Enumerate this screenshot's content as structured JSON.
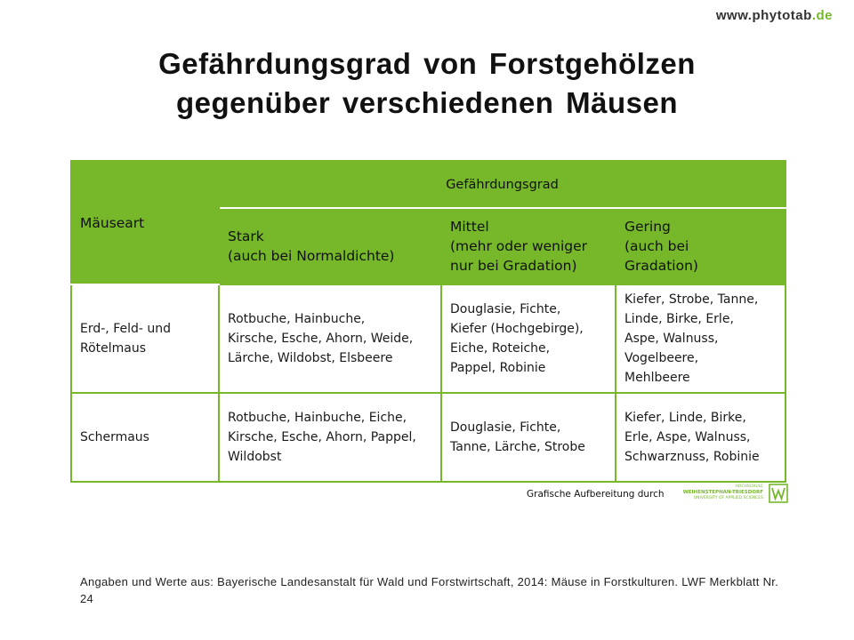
{
  "site": {
    "name": "www.phytotab",
    "tld": ".de"
  },
  "title": {
    "line1": "Gefährdungsgrad von Forstgehölzen",
    "line2": "gegenüber verschiedenen Mäusen"
  },
  "table": {
    "row_header": "Mäuseart",
    "group_header": "Gefährdungsgrad",
    "columns": [
      {
        "line1": "Stark",
        "line2": "(auch bei  Normaldichte)",
        "line3": ""
      },
      {
        "line1": "Mittel",
        "line2": "(mehr oder weniger",
        "line3": "nur bei Gradation)"
      },
      {
        "line1": "Gering",
        "line2": "(auch bei",
        "line3": "Gradation)"
      }
    ],
    "rows": [
      {
        "species": [
          "Erd-, Feld- und",
          "Rötelmaus"
        ],
        "stark": [
          "Rotbuche, Hainbuche,",
          "Kirsche, Esche, Ahorn, Weide,",
          "Lärche, Wildobst, Elsbeere"
        ],
        "mittel": [
          "Douglasie, Fichte,",
          "Kiefer (Hochgebirge),",
          "Eiche, Roteiche,",
          "Pappel, Robinie"
        ],
        "gering": [
          "Kiefer, Strobe, Tanne,",
          "Linde, Birke, Erle,",
          "Aspe, Walnuss,",
          "Vogelbeere,",
          "Mehlbeere"
        ]
      },
      {
        "species": [
          "Schermaus"
        ],
        "stark": [
          "Rotbuche, Hainbuche, Eiche,",
          "Kirsche, Esche, Ahorn, Pappel,",
          "Wildobst"
        ],
        "mittel": [
          "Douglasie, Fichte,",
          "Tanne, Lärche, Strobe"
        ],
        "gering": [
          "Kiefer, Linde, Birke,",
          "Erle, Aspe, Walnuss,",
          "Schwarznuss, Robinie"
        ]
      }
    ]
  },
  "credit": {
    "text": "Grafische Aufbereitung durch",
    "logo_line1": "HOCHSCHULE",
    "logo_line2": "WEIHENSTEPHAN-TRIESDORF",
    "logo_line3": "UNIVERSITY OF APPLIED SCIENCES"
  },
  "source": "Angaben und Werte aus: Bayerische Landesanstalt für Wald und Forstwirtschaft, 2014: Mäuse in Forstkulturen. LWF Merkblatt Nr. 24",
  "colors": {
    "accent": "#76b82a",
    "text": "#111111"
  }
}
